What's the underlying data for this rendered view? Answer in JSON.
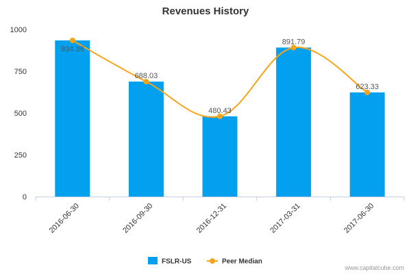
{
  "chart_data": {
    "type": "bar",
    "title": "Revenues History",
    "xlabel": "",
    "ylabel": "",
    "categories": [
      "2016-06-30",
      "2016-09-30",
      "2016-12-31",
      "2017-03-31",
      "2017-06-30"
    ],
    "ylim": [
      0,
      1000
    ],
    "yticks": [
      0,
      250,
      500,
      750,
      1000
    ],
    "grid": false,
    "legend_position": "bottom-center",
    "series": [
      {
        "name": "FSLR-US",
        "kind": "bar",
        "color": "#04a0f0",
        "values": [
          934.38,
          688.03,
          480.43,
          891.79,
          623.33
        ]
      },
      {
        "name": "Peer Median",
        "kind": "line",
        "color": "#f7a318",
        "values": [
          934.38,
          688.03,
          480.43,
          891.79,
          623.33
        ]
      }
    ],
    "data_labels": [
      "934.38",
      "688.03",
      "480.43",
      "891.79",
      "623.33"
    ]
  },
  "credit": "www.capitalcube.com"
}
